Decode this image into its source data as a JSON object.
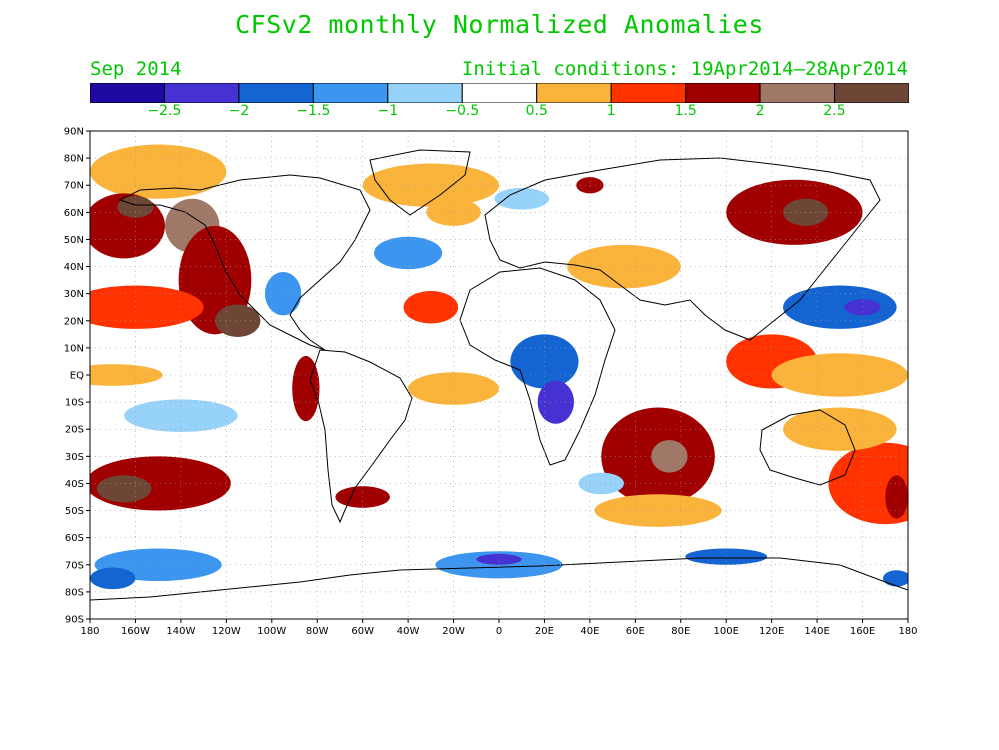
{
  "title": "CFSv2 monthly Normalized Anomalies",
  "month": "Sep 2014",
  "initial_conditions": "Initial conditions: 19Apr2014–28Apr2014",
  "colorbar": {
    "colors": [
      "#1e0aa0",
      "#4632d2",
      "#1464d2",
      "#3c96f0",
      "#96d2fa",
      "#ffffff",
      "#fab43c",
      "#ff3200",
      "#a00000",
      "#a07868",
      "#6e4636"
    ],
    "labels": [
      "−2.5",
      "−2",
      "−1.5",
      "−1",
      "−0.5",
      "0.5",
      "1",
      "1.5",
      "2",
      "2.5"
    ]
  },
  "axes": {
    "lat_labels": [
      "90N",
      "80N",
      "70N",
      "60N",
      "50N",
      "40N",
      "30N",
      "20N",
      "10N",
      "EQ",
      "10S",
      "20S",
      "30S",
      "40S",
      "50S",
      "60S",
      "70S",
      "80S",
      "90S"
    ],
    "lon_labels": [
      "180",
      "160W",
      "140W",
      "120W",
      "100W",
      "80W",
      "60W",
      "40W",
      "20W",
      "0",
      "20E",
      "40E",
      "60E",
      "80E",
      "100E",
      "120E",
      "140E",
      "160E",
      "180"
    ]
  },
  "chart_data": {
    "type": "heatmap",
    "title": "CFSv2 monthly Normalized Anomalies",
    "lat_range": [
      -90,
      90
    ],
    "lon_range": [
      -180,
      180
    ],
    "color_levels": [
      -2.5,
      -2,
      -1.5,
      -1,
      -0.5,
      0.5,
      1,
      1.5,
      2,
      2.5
    ],
    "regions": [
      {
        "lon": -150,
        "lat": 75,
        "rx": 30,
        "ry": 10,
        "level": 0.7
      },
      {
        "lon": -165,
        "lat": 55,
        "rx": 18,
        "ry": 12,
        "level": 1.6
      },
      {
        "lon": -160,
        "lat": 62,
        "rx": 8,
        "ry": 4,
        "level": 2.6
      },
      {
        "lon": -135,
        "lat": 55,
        "rx": 12,
        "ry": 10,
        "level": 2.1
      },
      {
        "lon": -125,
        "lat": 35,
        "rx": 16,
        "ry": 20,
        "level": 1.6
      },
      {
        "lon": -115,
        "lat": 20,
        "rx": 10,
        "ry": 6,
        "level": 2.6
      },
      {
        "lon": -160,
        "lat": 25,
        "rx": 30,
        "ry": 8,
        "level": 1.2
      },
      {
        "lon": -170,
        "lat": 0,
        "rx": 22,
        "ry": 4,
        "level": 0.7
      },
      {
        "lon": -85,
        "lat": -5,
        "rx": 6,
        "ry": 12,
        "level": 1.6
      },
      {
        "lon": -150,
        "lat": -40,
        "rx": 32,
        "ry": 10,
        "level": 1.6
      },
      {
        "lon": -165,
        "lat": -42,
        "rx": 12,
        "ry": 5,
        "level": 2.6
      },
      {
        "lon": -140,
        "lat": -15,
        "rx": 25,
        "ry": 6,
        "level": -0.7
      },
      {
        "lon": -150,
        "lat": -70,
        "rx": 28,
        "ry": 6,
        "level": -1.2
      },
      {
        "lon": -170,
        "lat": -75,
        "rx": 10,
        "ry": 4,
        "level": -1.8
      },
      {
        "lon": -95,
        "lat": 30,
        "rx": 8,
        "ry": 8,
        "level": -1.2
      },
      {
        "lon": -40,
        "lat": 45,
        "rx": 15,
        "ry": 6,
        "level": -1.2
      },
      {
        "lon": -30,
        "lat": 70,
        "rx": 30,
        "ry": 8,
        "level": 0.6
      },
      {
        "lon": -30,
        "lat": 25,
        "rx": 12,
        "ry": 6,
        "level": 1.2
      },
      {
        "lon": 20,
        "lat": 5,
        "rx": 15,
        "ry": 10,
        "level": -1.6
      },
      {
        "lon": 25,
        "lat": -10,
        "rx": 8,
        "ry": 8,
        "level": -2.2
      },
      {
        "lon": 70,
        "lat": -30,
        "rx": 25,
        "ry": 18,
        "level": 1.6
      },
      {
        "lon": 75,
        "lat": -30,
        "rx": 8,
        "ry": 6,
        "level": 2.1
      },
      {
        "lon": 70,
        "lat": -50,
        "rx": 28,
        "ry": 6,
        "level": 0.8
      },
      {
        "lon": 0,
        "lat": -70,
        "rx": 28,
        "ry": 5,
        "level": -1.2
      },
      {
        "lon": 0,
        "lat": -68,
        "rx": 10,
        "ry": 2,
        "level": -2.2
      },
      {
        "lon": 100,
        "lat": -67,
        "rx": 18,
        "ry": 3,
        "level": -1.6
      },
      {
        "lon": 130,
        "lat": 60,
        "rx": 30,
        "ry": 12,
        "level": 1.6
      },
      {
        "lon": 135,
        "lat": 60,
        "rx": 10,
        "ry": 5,
        "level": 2.6
      },
      {
        "lon": 150,
        "lat": 25,
        "rx": 25,
        "ry": 8,
        "level": -1.6
      },
      {
        "lon": 160,
        "lat": 25,
        "rx": 8,
        "ry": 3,
        "level": -2.2
      },
      {
        "lon": 120,
        "lat": 5,
        "rx": 20,
        "ry": 10,
        "level": 1.2
      },
      {
        "lon": 150,
        "lat": 0,
        "rx": 30,
        "ry": 8,
        "level": 0.7
      },
      {
        "lon": 170,
        "lat": -40,
        "rx": 25,
        "ry": 15,
        "level": 1.2
      },
      {
        "lon": 175,
        "lat": -45,
        "rx": 5,
        "ry": 8,
        "level": 1.8
      },
      {
        "lon": 150,
        "lat": -20,
        "rx": 25,
        "ry": 8,
        "level": 0.6
      },
      {
        "lon": 55,
        "lat": 40,
        "rx": 25,
        "ry": 8,
        "level": 0.6
      },
      {
        "lon": -20,
        "lat": 60,
        "rx": 12,
        "ry": 5,
        "level": 0.7
      },
      {
        "lon": 10,
        "lat": 65,
        "rx": 12,
        "ry": 4,
        "level": -0.6
      },
      {
        "lon": 40,
        "lat": 70,
        "rx": 6,
        "ry": 3,
        "level": 1.6
      },
      {
        "lon": -60,
        "lat": -45,
        "rx": 12,
        "ry": 4,
        "level": 1.6
      },
      {
        "lon": -20,
        "lat": -5,
        "rx": 20,
        "ry": 6,
        "level": 0.6
      },
      {
        "lon": 45,
        "lat": -40,
        "rx": 10,
        "ry": 4,
        "level": -0.8
      },
      {
        "lon": 175,
        "lat": -75,
        "rx": 6,
        "ry": 3,
        "level": -1.6
      }
    ]
  }
}
